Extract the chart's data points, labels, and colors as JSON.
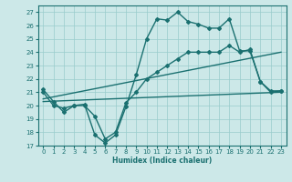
{
  "xlabel": "Humidex (Indice chaleur)",
  "xlim": [
    -0.5,
    23.5
  ],
  "ylim": [
    17,
    27.5
  ],
  "yticks": [
    17,
    18,
    19,
    20,
    21,
    22,
    23,
    24,
    25,
    26,
    27
  ],
  "xticks": [
    0,
    1,
    2,
    3,
    4,
    5,
    6,
    7,
    8,
    9,
    10,
    11,
    12,
    13,
    14,
    15,
    16,
    17,
    18,
    19,
    20,
    21,
    22,
    23
  ],
  "bg_color": "#cce8e8",
  "grid_color": "#99cccc",
  "line_color": "#1a7070",
  "lines": [
    {
      "x": [
        0,
        1,
        2,
        3,
        4,
        5,
        6,
        7,
        8,
        9,
        10,
        11,
        12,
        13,
        14,
        15,
        16,
        17,
        18,
        19,
        20,
        21,
        22,
        23
      ],
      "y": [
        21.2,
        20.3,
        19.5,
        20.0,
        20.1,
        17.8,
        17.2,
        17.8,
        19.9,
        22.3,
        25.0,
        26.5,
        26.4,
        27.0,
        26.3,
        26.1,
        25.8,
        25.8,
        26.5,
        24.1,
        24.1,
        21.8,
        21.0,
        21.1
      ],
      "marker": "D",
      "markersize": 2.0,
      "linewidth": 1.0
    },
    {
      "x": [
        0,
        1,
        2,
        3,
        4,
        5,
        6,
        7,
        8,
        9,
        10,
        11,
        12,
        13,
        14,
        15,
        16,
        17,
        18,
        19,
        20,
        21,
        22,
        23
      ],
      "y": [
        21.0,
        20.0,
        19.8,
        20.0,
        20.0,
        19.2,
        17.5,
        18.0,
        20.2,
        21.0,
        22.0,
        22.5,
        23.0,
        23.5,
        24.0,
        24.0,
        24.0,
        24.0,
        24.5,
        24.0,
        24.2,
        21.8,
        21.1,
        21.1
      ],
      "marker": "D",
      "markersize": 2.0,
      "linewidth": 1.0
    },
    {
      "x": [
        0,
        23
      ],
      "y": [
        20.5,
        24.0
      ],
      "marker": null,
      "markersize": 0,
      "linewidth": 1.0
    },
    {
      "x": [
        0,
        23
      ],
      "y": [
        20.3,
        21.0
      ],
      "marker": null,
      "markersize": 0,
      "linewidth": 1.0
    }
  ]
}
